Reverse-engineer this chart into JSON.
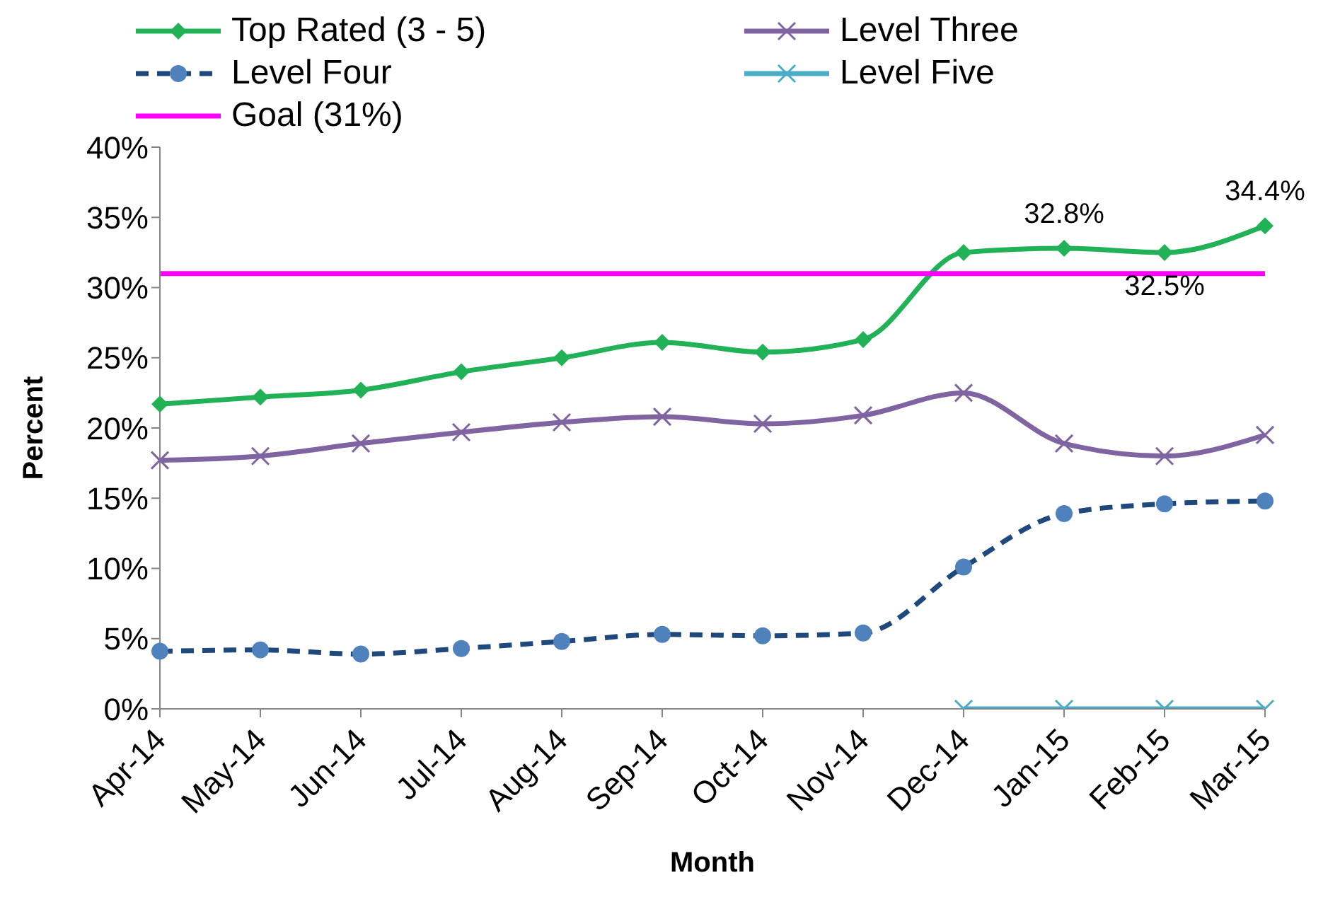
{
  "chart_data": {
    "type": "line",
    "xlabel": "Month",
    "ylabel": "Percent",
    "categories": [
      "Apr-14",
      "May-14",
      "Jun-14",
      "Jul-14",
      "Aug-14",
      "Sep-14",
      "Oct-14",
      "Nov-14",
      "Dec-14",
      "Jan-15",
      "Feb-15",
      "Mar-15"
    ],
    "series": [
      {
        "name": "Top Rated (3 - 5)",
        "color": "#21b157",
        "marker": "diamond",
        "values": [
          21.7,
          22.2,
          22.7,
          24.0,
          25.0,
          26.1,
          25.4,
          26.3,
          32.5,
          32.8,
          32.5,
          34.4
        ],
        "value_labels": [
          null,
          null,
          null,
          null,
          null,
          null,
          null,
          null,
          null,
          "32.8%",
          "32.5%",
          "34.4%"
        ]
      },
      {
        "name": "Level Three",
        "color": "#8064a2",
        "marker": "cross",
        "values": [
          17.7,
          18.0,
          18.9,
          19.7,
          20.4,
          20.8,
          20.3,
          20.9,
          22.5,
          18.9,
          18.0,
          19.5
        ]
      },
      {
        "name": "Level Four",
        "color": "#1f497d",
        "marker": "circle",
        "line_style": "dashed",
        "values": [
          4.1,
          4.2,
          3.9,
          4.3,
          4.8,
          5.3,
          5.2,
          5.4,
          10.1,
          13.9,
          14.6,
          14.8
        ]
      },
      {
        "name": "Level Five",
        "color": "#4bacc6",
        "marker": "cross",
        "values": [
          null,
          null,
          null,
          null,
          null,
          null,
          null,
          null,
          0,
          0,
          0,
          0
        ]
      },
      {
        "name": "Goal (31%)",
        "color": "#ff00ff",
        "marker": "none",
        "values": [
          31,
          31,
          31,
          31,
          31,
          31,
          31,
          31,
          31,
          31,
          31,
          31
        ]
      }
    ],
    "ylim": [
      0,
      40
    ],
    "yticks": [
      {
        "value": 0,
        "label": "0%"
      },
      {
        "value": 5,
        "label": "5%"
      },
      {
        "value": 10,
        "label": "10%"
      },
      {
        "value": 15,
        "label": "15%"
      },
      {
        "value": 20,
        "label": "20%"
      },
      {
        "value": 25,
        "label": "25%"
      },
      {
        "value": 30,
        "label": "30%"
      },
      {
        "value": 35,
        "label": "35%"
      },
      {
        "value": 40,
        "label": "40%"
      }
    ],
    "grid": false,
    "legend": "top"
  }
}
